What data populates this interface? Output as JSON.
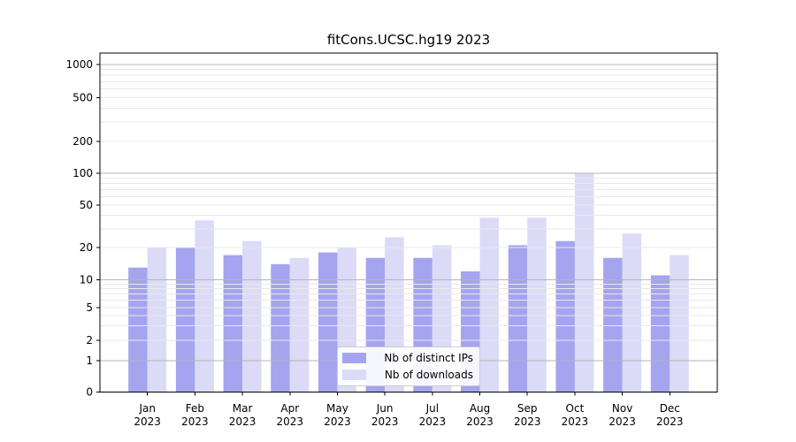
{
  "chart_data": {
    "type": "bar",
    "title": "fitCons.UCSC.hg19 2023",
    "categories": [
      "Jan",
      "Feb",
      "Mar",
      "Apr",
      "May",
      "Jun",
      "Jul",
      "Aug",
      "Sep",
      "Oct",
      "Nov",
      "Dec"
    ],
    "year_label": "2023",
    "series": [
      {
        "name": "Nb of distinct IPs",
        "color": "#a4a4ef",
        "values": [
          13,
          20,
          17,
          14,
          18,
          16,
          16,
          12,
          21,
          23,
          16,
          11
        ]
      },
      {
        "name": "Nb of downloads",
        "color": "#dbdbf8",
        "values": [
          20,
          36,
          23,
          16,
          20,
          25,
          21,
          38,
          38,
          101,
          27,
          17
        ]
      }
    ],
    "yticks": [
      0,
      1,
      2,
      5,
      10,
      20,
      50,
      100,
      200,
      500,
      1000
    ],
    "ylim": [
      0,
      1600
    ],
    "yscale": "log-like",
    "grid": true,
    "legend_position": "lower center",
    "colors": {
      "major_gridline": "#b5b5b5",
      "minor_gridline": "#e9e9e9",
      "axis": "#000000",
      "text": "#000000",
      "background": "#ffffff"
    }
  }
}
